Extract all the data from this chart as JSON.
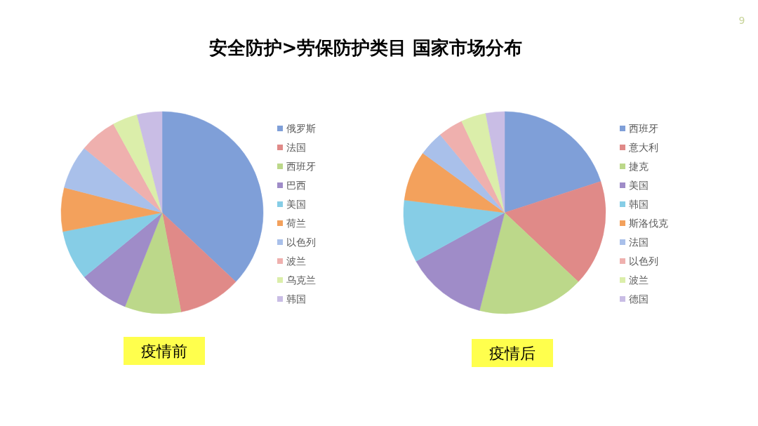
{
  "chart_data": [
    {
      "type": "pie",
      "title": "安全防护>劳保防护类目 国家市场分布",
      "categories": [
        "俄罗斯",
        "法国",
        "西班牙",
        "巴西",
        "美国",
        "荷兰",
        "以色列",
        "波兰",
        "乌克兰",
        "韩国"
      ],
      "values": [
        37,
        10,
        9,
        8,
        8,
        7,
        7,
        6,
        4,
        4
      ],
      "colors": [
        "#7f9fd8",
        "#e08a88",
        "#bcd88a",
        "#9f8cc8",
        "#86cde6",
        "#f3a15c",
        "#a9c0ea",
        "#efb0ae",
        "#dbeeaa",
        "#c9bde5"
      ],
      "legend": "right",
      "annotations": [
        "疫情前"
      ]
    },
    {
      "type": "pie",
      "categories": [
        "西班牙",
        "意大利",
        "捷克",
        "美国",
        "韩国",
        "斯洛伐克",
        "法国",
        "以色列",
        "波兰",
        "德国"
      ],
      "values": [
        20,
        17,
        17,
        13,
        10,
        8,
        4,
        4,
        4,
        3
      ],
      "colors": [
        "#7f9fd8",
        "#e08a88",
        "#bcd88a",
        "#9f8cc8",
        "#86cde6",
        "#f3a15c",
        "#a9c0ea",
        "#efb0ae",
        "#dbeeaa",
        "#c9bde5"
      ],
      "legend": "right",
      "annotations": [
        "疫情后",
        "9"
      ]
    }
  ]
}
